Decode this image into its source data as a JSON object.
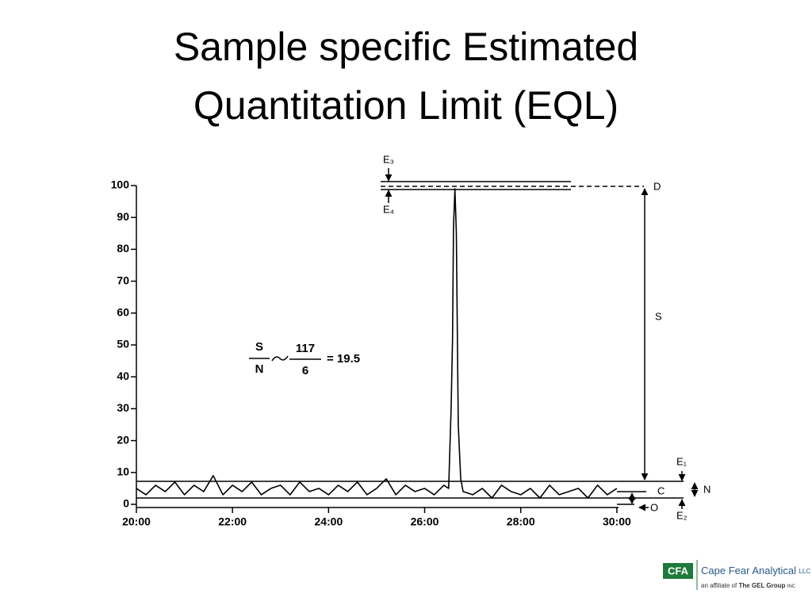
{
  "chart_data": {
    "type": "line",
    "title": "Sample specific Estimated Quantitation Limit (EQL)",
    "x": [
      20.0,
      20.2,
      20.4,
      20.6,
      20.8,
      21.0,
      21.2,
      21.4,
      21.6,
      21.8,
      22.0,
      22.2,
      22.4,
      22.6,
      22.8,
      23.0,
      23.2,
      23.4,
      23.6,
      23.8,
      24.0,
      24.2,
      24.4,
      24.6,
      24.8,
      25.0,
      25.2,
      25.4,
      25.6,
      25.8,
      26.0,
      26.2,
      26.4,
      26.5,
      26.55,
      26.58,
      26.6,
      26.63,
      26.66,
      26.7,
      26.75,
      26.8,
      27.0,
      27.2,
      27.4,
      27.6,
      27.8,
      28.0,
      28.2,
      28.4,
      28.6,
      28.8,
      29.0,
      29.2,
      29.4,
      29.6,
      29.8,
      30.0
    ],
    "series": [
      {
        "color": "#000000",
        "values": [
          5,
          3,
          6,
          4,
          7,
          3,
          6,
          4,
          9,
          3,
          6,
          4,
          7,
          3,
          5,
          6,
          3,
          7,
          4,
          5,
          3,
          6,
          4,
          7,
          3,
          5,
          8,
          3,
          6,
          4,
          5,
          3,
          6,
          5,
          30,
          52,
          87,
          99,
          85,
          25,
          8,
          4,
          3,
          5,
          2,
          6,
          4,
          3,
          5,
          2,
          6,
          3,
          4,
          5,
          2,
          6,
          3,
          5
        ]
      }
    ],
    "xlim": [
      20,
      30.2
    ],
    "xticks": [
      {
        "value": 20,
        "label": "20:00"
      },
      {
        "value": 22,
        "label": "22:00"
      },
      {
        "value": 24,
        "label": "24:00"
      },
      {
        "value": 26,
        "label": "26:00"
      },
      {
        "value": 28,
        "label": "28:00"
      },
      {
        "value": 30,
        "label": "30:00"
      }
    ],
    "ylim": [
      0,
      100
    ],
    "yticks": [
      0,
      10,
      20,
      30,
      40,
      50,
      60,
      70,
      80,
      90,
      100
    ],
    "formula": {
      "s": "S",
      "n": "N",
      "numerator": "117",
      "denominator": "6",
      "result": "= 19.5"
    },
    "annotations": [
      "E₃",
      "E₄",
      "D",
      "S",
      "E₁",
      "C",
      "N",
      "O",
      "E₂"
    ]
  },
  "logo": {
    "mark": "CFA",
    "name": "Cape Fear Analytical",
    "suffix": "LLC",
    "affiliate": "an affiliate of",
    "group": "The GEL Group",
    "group_suffix": "INC"
  }
}
